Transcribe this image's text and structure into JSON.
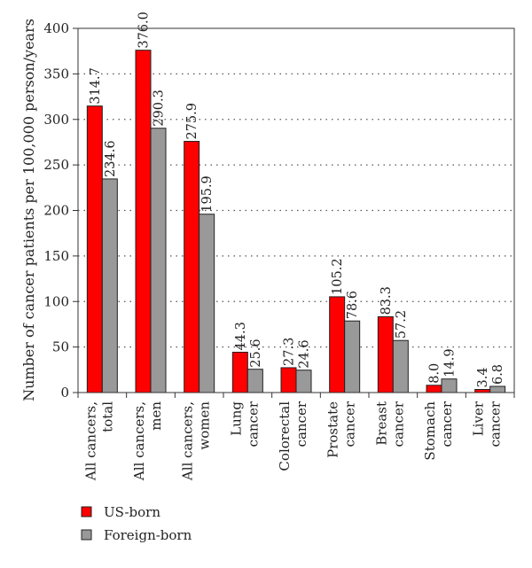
{
  "chart_data": {
    "type": "bar",
    "ylabel": "Number of cancer patients per 100,000 person/years",
    "ylim": [
      0,
      400
    ],
    "yticks": [
      0,
      50,
      100,
      150,
      200,
      250,
      300,
      350,
      400
    ],
    "grid": "horizontal dotted",
    "legend_position": "bottom-left",
    "categories": [
      [
        "All cancers,",
        "total"
      ],
      [
        "All cancers,",
        "men"
      ],
      [
        "All cancers,",
        "women"
      ],
      [
        "Lung",
        "cancer"
      ],
      [
        "Colorectal",
        "cancer"
      ],
      [
        "Prostate",
        "cancer"
      ],
      [
        "Breast",
        "cancer"
      ],
      [
        "Stomach",
        "cancer"
      ],
      [
        "Liver",
        "cancer"
      ]
    ],
    "series": [
      {
        "name": "US-born",
        "color": "#ff0000",
        "values": [
          314.7,
          376.0,
          275.9,
          44.3,
          27.3,
          105.2,
          83.3,
          8.0,
          3.4
        ],
        "labels": [
          "314.7",
          "376.0",
          "275.9",
          "44.3",
          "27.3",
          "105.2",
          "83.3",
          "8.0",
          "3.4"
        ]
      },
      {
        "name": "Foreign-born",
        "color": "#999999",
        "values": [
          234.6,
          290.3,
          195.9,
          25.6,
          24.6,
          78.6,
          57.2,
          14.9,
          6.8
        ],
        "labels": [
          "234.6",
          "290.3",
          "195.9",
          "25.6",
          "24.6",
          "78.6",
          "57.2",
          "14.9",
          "6.8"
        ]
      }
    ]
  }
}
